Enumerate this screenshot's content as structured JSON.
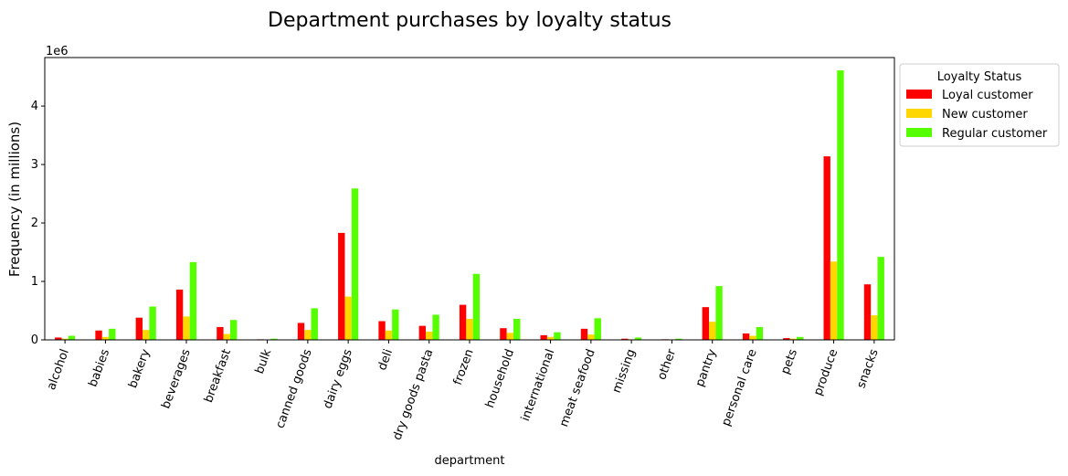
{
  "chart_data": {
    "type": "bar",
    "title": "Department purchases by loyalty status",
    "xlabel": "department",
    "ylabel": "Frequency (in millions)",
    "y_offset_label": "1e6",
    "ylim": [
      0,
      4.83
    ],
    "yticks": [
      0,
      1,
      2,
      3,
      4
    ],
    "grid": false,
    "legend": {
      "title": "Loyalty Status",
      "placement": "outside-top-right"
    },
    "categories": [
      "alcohol",
      "babies",
      "bakery",
      "beverages",
      "breakfast",
      "bulk",
      "canned goods",
      "dairy eggs",
      "deli",
      "dry goods pasta",
      "frozen",
      "household",
      "international",
      "meat seafood",
      "missing",
      "other",
      "pantry",
      "personal care",
      "pets",
      "produce",
      "snacks"
    ],
    "series": [
      {
        "name": "Loyal customer",
        "color": "#ff0000",
        "values": [
          0.04,
          0.16,
          0.38,
          0.86,
          0.22,
          0.01,
          0.29,
          1.83,
          0.32,
          0.24,
          0.6,
          0.2,
          0.08,
          0.19,
          0.02,
          0.01,
          0.56,
          0.11,
          0.03,
          3.14,
          0.95
        ]
      },
      {
        "name": "New customer",
        "color": "#ffd700",
        "values": [
          0.02,
          0.05,
          0.17,
          0.4,
          0.1,
          0.005,
          0.17,
          0.74,
          0.16,
          0.14,
          0.36,
          0.12,
          0.05,
          0.09,
          0.01,
          0.005,
          0.31,
          0.07,
          0.02,
          1.34,
          0.42
        ]
      },
      {
        "name": "Regular customer",
        "color": "#55ff00",
        "values": [
          0.07,
          0.19,
          0.57,
          1.33,
          0.34,
          0.02,
          0.54,
          2.59,
          0.52,
          0.43,
          1.13,
          0.36,
          0.13,
          0.37,
          0.04,
          0.02,
          0.92,
          0.22,
          0.05,
          4.61,
          1.42
        ]
      }
    ]
  }
}
